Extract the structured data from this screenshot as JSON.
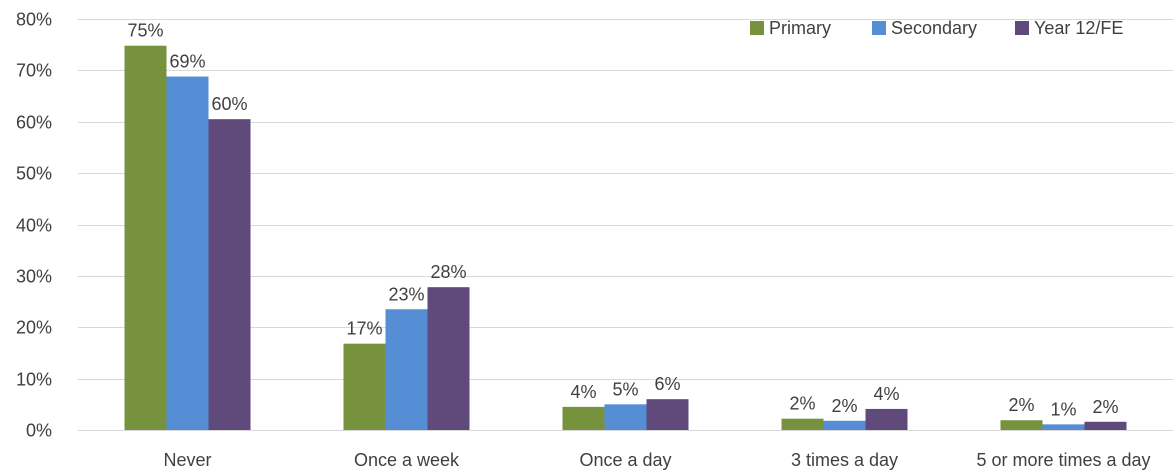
{
  "chart_data": {
    "type": "bar",
    "title": "",
    "xlabel": "",
    "ylabel": "",
    "categories": [
      "Never",
      "Once a week",
      "Once a day",
      "3 times a day",
      "5 or more times a day"
    ],
    "series": [
      {
        "name": "Primary",
        "color": "#76923C",
        "values": [
          0.748,
          0.168,
          0.045,
          0.022,
          0.019
        ],
        "labels": [
          "75%",
          "17%",
          "4%",
          "2%",
          "2%"
        ]
      },
      {
        "name": "Secondary",
        "color": "#558ED5",
        "values": [
          0.688,
          0.235,
          0.05,
          0.018,
          0.011
        ],
        "labels": [
          "69%",
          "23%",
          "5%",
          "2%",
          "1%"
        ]
      },
      {
        "name": "Year 12/FE",
        "color": "#604A7B",
        "values": [
          0.605,
          0.278,
          0.06,
          0.041,
          0.016
        ],
        "labels": [
          "60%",
          "28%",
          "6%",
          "4%",
          "2%"
        ]
      }
    ],
    "ylim": [
      0,
      0.8
    ],
    "yticks": [
      {
        "value": 0,
        "label": "0%"
      },
      {
        "value": 0.1,
        "label": "10%"
      },
      {
        "value": 0.2,
        "label": "20%"
      },
      {
        "value": 0.3,
        "label": "30%"
      },
      {
        "value": 0.4,
        "label": "40%"
      },
      {
        "value": 0.5,
        "label": "50%"
      },
      {
        "value": 0.6,
        "label": "60%"
      },
      {
        "value": 0.7,
        "label": "70%"
      },
      {
        "value": 0.8,
        "label": "80%"
      }
    ],
    "grid": true,
    "gridline_color": "#D9D9D9",
    "legend_position": "top-right"
  }
}
